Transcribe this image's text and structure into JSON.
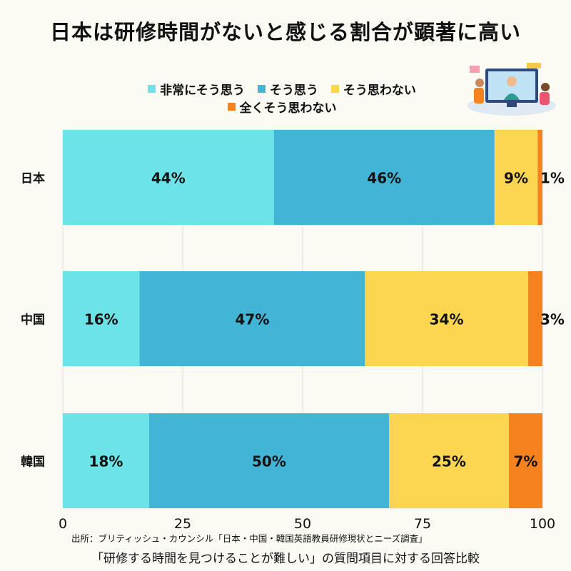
{
  "chart_data": {
    "type": "bar",
    "orientation": "horizontal",
    "stacked": true,
    "title": "日本は研修時間がないと感じる割合が顕著に高い",
    "categories": [
      "日本",
      "中国",
      "韓国"
    ],
    "series": [
      {
        "name": "非常にそう思う",
        "color": "#6ce3e6",
        "values": [
          44,
          16,
          18
        ]
      },
      {
        "name": "そう思う",
        "color": "#42b5d6",
        "values": [
          46,
          47,
          50
        ]
      },
      {
        "name": "そう思わない",
        "color": "#fdd651",
        "values": [
          9,
          34,
          25
        ]
      },
      {
        "name": "全くそう思わない",
        "color": "#f5821f",
        "values": [
          1,
          3,
          7
        ]
      }
    ],
    "value_labels": [
      [
        "44%",
        "46%",
        "9%",
        "1%"
      ],
      [
        "16%",
        "47%",
        "34%",
        "3%"
      ],
      [
        "18%",
        "50%",
        "25%",
        "7%"
      ]
    ],
    "xlim": [
      0,
      100
    ],
    "xticks": [
      0,
      25,
      50,
      75,
      100
    ],
    "grid": true,
    "legend_position": "top"
  },
  "source": "出所：ブリティッシュ・カウンシル「日本・中国・韓国英語教員研修現状とニーズ調査」",
  "subtitle": "「研修する時間を見つけることが難しい」の質問項目に対する回答比較",
  "illustration": {
    "icon": "online-training-illustration"
  }
}
